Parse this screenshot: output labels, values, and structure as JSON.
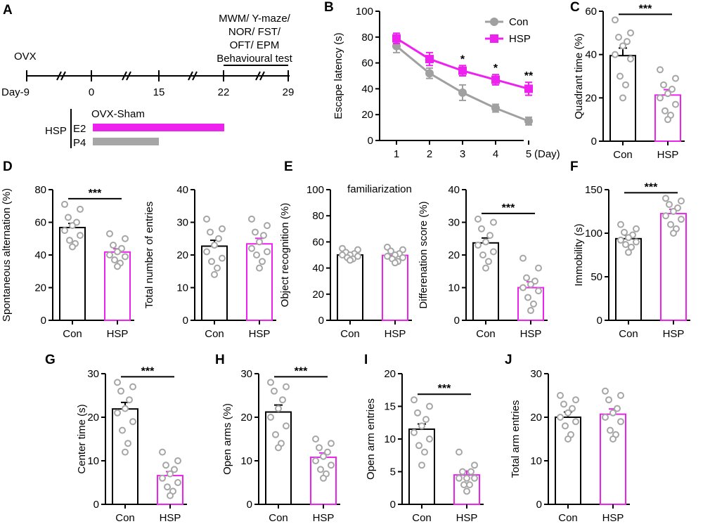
{
  "colors": {
    "con": "#000000",
    "hsp": "#ee22ee",
    "dot": "#a6a6a6",
    "line_con": "#a0a0a0",
    "line_hsp": "#ee22ee",
    "bar_p4": "#a6a6a6"
  },
  "timeline": {
    "panel_label": "A",
    "ovx": "OVX",
    "tests_lines": [
      "MWM/ Y-maze/",
      "NOR/ FST/",
      "OFT/ EPM",
      "Behavioural test"
    ],
    "days": [
      "Day-9",
      "0",
      "15",
      "22",
      "29"
    ],
    "sham_label": "OVX-Sham",
    "hsp_label": "HSP",
    "e2_label": "E2",
    "p4_label": "P4"
  },
  "chart_data": [
    {
      "id": "B",
      "type": "line",
      "panel_label": "B",
      "ylabel": "Escape latency (s)",
      "xlabel": "(Day)",
      "ylim": [
        0,
        100
      ],
      "yticks": [
        0,
        20,
        40,
        60,
        80,
        100
      ],
      "x": [
        1,
        2,
        3,
        4,
        5
      ],
      "x_tick_labels": [
        "1",
        "2",
        "3",
        "4",
        "5"
      ],
      "series": [
        {
          "name": "Con",
          "values": [
            73,
            52,
            37,
            25,
            15
          ],
          "err": [
            5,
            4,
            6,
            3,
            3
          ]
        },
        {
          "name": "HSP",
          "values": [
            79,
            63,
            54,
            47,
            40
          ],
          "err": [
            4,
            5,
            4,
            4,
            5
          ]
        }
      ],
      "significance": [
        "",
        "",
        "*",
        "*",
        "**"
      ],
      "legend": [
        "Con",
        "HSP"
      ],
      "legend_position": "top-right"
    },
    {
      "id": "C",
      "type": "bar",
      "panel_label": "C",
      "ylabel": "Quadrant time (%)",
      "ylim": [
        0,
        60
      ],
      "yticks": [
        0,
        20,
        40,
        60
      ],
      "categories": [
        "Con",
        "HSP"
      ],
      "values": [
        39.5,
        21.3
      ],
      "err": [
        3.5,
        2.5
      ],
      "points": [
        [
          56,
          50,
          48,
          46,
          44,
          40,
          38,
          30,
          26,
          20
        ],
        [
          33,
          29,
          26,
          24,
          22,
          20,
          17,
          14,
          12,
          10
        ]
      ],
      "significance": "***"
    },
    {
      "id": "D1",
      "type": "bar",
      "panel_label": "D",
      "ylabel": "Spontaneous alternation (%)",
      "ylim": [
        0,
        80
      ],
      "yticks": [
        0,
        20,
        40,
        60,
        80
      ],
      "categories": [
        "Con",
        "HSP"
      ],
      "values": [
        56.8,
        41.8
      ],
      "err": [
        2.5,
        2
      ],
      "points": [
        [
          71,
          68,
          63,
          60,
          58,
          55,
          52,
          49,
          47,
          45
        ],
        [
          53,
          50,
          46,
          44,
          42,
          40,
          39,
          37,
          35,
          33
        ]
      ],
      "significance": "***"
    },
    {
      "id": "D2",
      "type": "bar",
      "panel_label": "",
      "ylabel": "Total number of entries",
      "ylim": [
        0,
        40
      ],
      "yticks": [
        0,
        10,
        20,
        30,
        40
      ],
      "categories": [
        "Con",
        "HSP"
      ],
      "values": [
        22.7,
        23.4
      ],
      "err": [
        1.8,
        1.7
      ],
      "points": [
        [
          31,
          28,
          27,
          25,
          23,
          21,
          19,
          18,
          16,
          14
        ],
        [
          31,
          29,
          27,
          26,
          24,
          22,
          21,
          20,
          18,
          16
        ]
      ],
      "significance": ""
    },
    {
      "id": "E1",
      "type": "bar",
      "panel_label": "E",
      "title": "familiarization",
      "ylabel": "Object recognition  (%)",
      "ylim": [
        0,
        100
      ],
      "yticks": [
        0,
        20,
        40,
        60,
        80,
        100
      ],
      "categories": [
        "Con",
        "HSP"
      ],
      "values": [
        50,
        49.7
      ],
      "err": [
        1.2,
        1.5
      ],
      "points": [
        [
          55,
          54,
          52,
          51,
          50,
          50,
          49,
          48,
          47,
          46
        ],
        [
          56,
          54,
          53,
          51,
          50,
          49,
          48,
          47,
          45,
          44
        ]
      ],
      "significance": ""
    },
    {
      "id": "E2",
      "type": "bar",
      "panel_label": "",
      "ylabel": "Differenation score (%)",
      "ylim": [
        0,
        40
      ],
      "yticks": [
        0,
        10,
        20,
        30,
        40
      ],
      "categories": [
        "Con",
        "HSP"
      ],
      "values": [
        23.7,
        10
      ],
      "err": [
        1.5,
        1.8
      ],
      "points": [
        [
          31,
          30,
          28,
          26,
          24,
          23,
          21,
          20,
          18,
          16
        ],
        [
          19,
          16,
          13,
          12,
          11,
          10,
          9,
          7,
          5,
          3
        ]
      ],
      "significance": "***"
    },
    {
      "id": "F",
      "type": "bar",
      "panel_label": "F",
      "ylabel": "Immobility (s)",
      "ylim": [
        0,
        150
      ],
      "yticks": [
        0,
        50,
        100,
        150
      ],
      "categories": [
        "Con",
        "HSP"
      ],
      "values": [
        93.7,
        122.5
      ],
      "err": [
        4,
        5
      ],
      "points": [
        [
          110,
          105,
          101,
          98,
          95,
          92,
          90,
          87,
          84,
          78
        ],
        [
          140,
          137,
          133,
          129,
          125,
          120,
          116,
          110,
          105,
          100
        ]
      ],
      "significance": "***"
    },
    {
      "id": "G",
      "type": "bar",
      "panel_label": "G",
      "ylabel": "Center time (s)",
      "ylim": [
        0,
        30
      ],
      "yticks": [
        0,
        10,
        20,
        30
      ],
      "categories": [
        "Con",
        "HSP"
      ],
      "values": [
        21.9,
        6.6
      ],
      "err": [
        1.5,
        0.9
      ],
      "points": [
        [
          28,
          27,
          26,
          24,
          22,
          21,
          19,
          17,
          14,
          12
        ],
        [
          12,
          10,
          9,
          8,
          7,
          6,
          5,
          4,
          3,
          2
        ]
      ],
      "significance": "***"
    },
    {
      "id": "H",
      "type": "bar",
      "panel_label": "H",
      "ylabel": "Open arms (%)",
      "ylim": [
        0,
        30
      ],
      "yticks": [
        0,
        10,
        20,
        30
      ],
      "categories": [
        "Con",
        "HSP"
      ],
      "values": [
        21.2,
        10.8
      ],
      "err": [
        1.6,
        1
      ],
      "points": [
        [
          28,
          27,
          26,
          24,
          22,
          20,
          18,
          16,
          14,
          13
        ],
        [
          15,
          14,
          13,
          12,
          11,
          10,
          9,
          8,
          7,
          6
        ]
      ],
      "significance": "***"
    },
    {
      "id": "I",
      "type": "bar",
      "panel_label": "I",
      "ylabel": "Open arm entries",
      "ylim": [
        0,
        20
      ],
      "yticks": [
        0,
        5,
        10,
        15,
        20
      ],
      "categories": [
        "Con",
        "HSP"
      ],
      "values": [
        11.5,
        4.5
      ],
      "err": [
        0.8,
        0.6
      ],
      "points": [
        [
          16,
          15,
          14,
          13,
          12,
          11,
          10,
          9,
          8,
          6
        ],
        [
          8,
          6,
          5,
          5,
          4,
          4,
          4,
          3,
          3,
          2
        ]
      ],
      "significance": "***"
    },
    {
      "id": "J",
      "type": "bar",
      "panel_label": "J",
      "ylabel": "Total arm entries",
      "ylim": [
        0,
        30
      ],
      "yticks": [
        0,
        10,
        20,
        30
      ],
      "categories": [
        "Con",
        "HSP"
      ],
      "values": [
        20,
        20.7
      ],
      "err": [
        1.2,
        1.2
      ],
      "points": [
        [
          25,
          24,
          23,
          22,
          21,
          20,
          19,
          18,
          16,
          15
        ],
        [
          26,
          25,
          24,
          22,
          21,
          20,
          19,
          17,
          16,
          15
        ]
      ],
      "significance": ""
    }
  ]
}
